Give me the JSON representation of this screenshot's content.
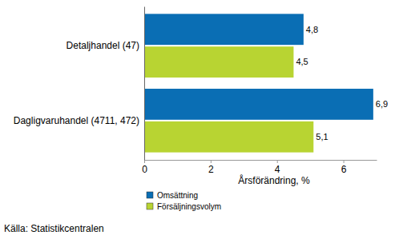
{
  "chart_data": {
    "type": "bar",
    "orientation": "horizontal",
    "categories": [
      "Detaljhandel (47)",
      "Dagligvaruhandel (4711, 472)"
    ],
    "series": [
      {
        "name": "Omsättning",
        "color": "#0a6eb4",
        "values": [
          4.8,
          6.9
        ],
        "value_labels": [
          "4,8",
          "6,9"
        ]
      },
      {
        "name": "Försäljningsvolym",
        "color": "#b8d432",
        "values": [
          4.5,
          5.1
        ],
        "value_labels": [
          "4,5",
          "5,1"
        ]
      }
    ],
    "x_label": "Årsförändring, %",
    "xlim": [
      0,
      7
    ],
    "xticks": [
      0,
      2,
      4,
      6
    ],
    "grid": false,
    "data_labels": true,
    "source": "Källa: Statistikcentralen"
  }
}
